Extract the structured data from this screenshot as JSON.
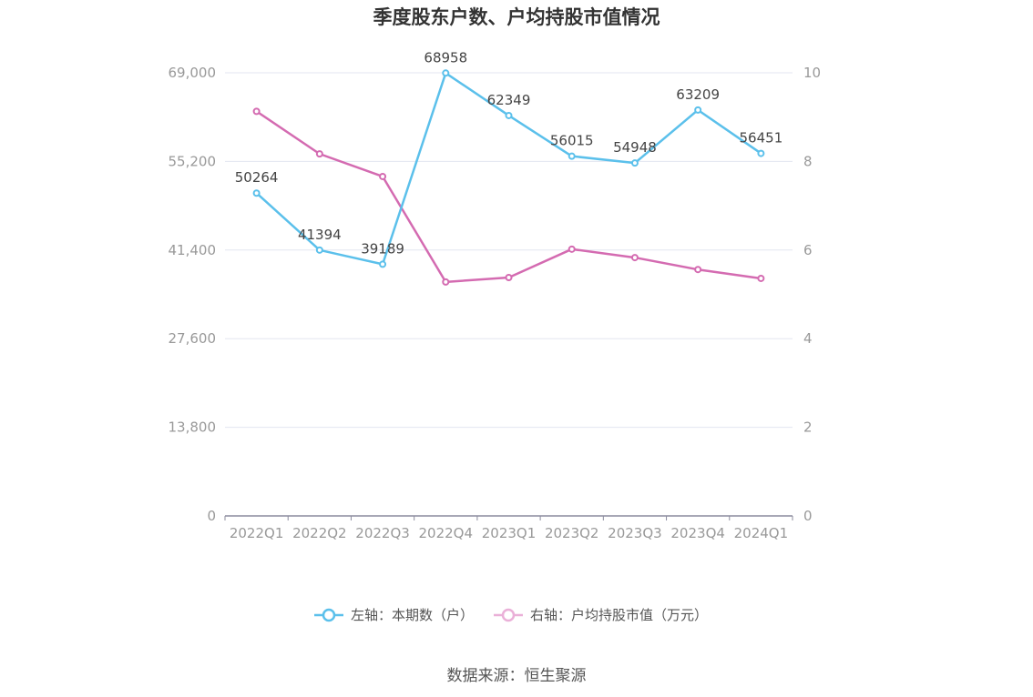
{
  "chart_data": {
    "type": "line",
    "title": "季度股东户数、户均持股市值情况",
    "categories": [
      "2022Q1",
      "2022Q2",
      "2022Q3",
      "2022Q4",
      "2023Q1",
      "2023Q2",
      "2023Q3",
      "2023Q4",
      "2024Q1"
    ],
    "left_axis": {
      "ylim": [
        0,
        69000
      ],
      "ticks": [
        "0",
        "13,800",
        "27,600",
        "41,400",
        "55,200",
        "69,000"
      ]
    },
    "right_axis": {
      "ylim": [
        0,
        10
      ],
      "ticks": [
        "0",
        "2",
        "4",
        "6",
        "8",
        "10"
      ]
    },
    "grid": true,
    "legend_position": "bottom",
    "series": [
      {
        "name": "左轴：本期数（户）",
        "axis": "left",
        "color": "#5bc0eb",
        "values": [
          50264,
          41394,
          39189,
          68958,
          62349,
          56015,
          54948,
          63209,
          56451
        ],
        "labels": [
          "50264",
          "41394",
          "39189",
          "68958",
          "62349",
          "56015",
          "54948",
          "63209",
          "56451"
        ]
      },
      {
        "name": "右轴：户均持股市值（万元）",
        "axis": "right",
        "color": "#d46bb1",
        "legend_color": "#eab0d8",
        "values": [
          9.13,
          8.17,
          7.66,
          5.28,
          5.38,
          6.02,
          5.83,
          5.56,
          5.36
        ]
      }
    ]
  },
  "source": "数据来源：恒生聚源"
}
